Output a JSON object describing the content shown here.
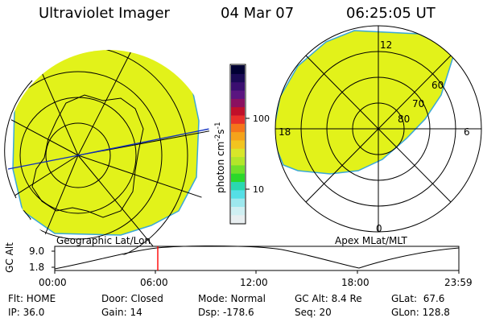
{
  "header": {
    "instrument": "Ultraviolet Imager",
    "date": "04 Mar 07",
    "time": "06:25:05 UT"
  },
  "left_map": {
    "label": "Geographic Lat/Lon"
  },
  "right_map": {
    "label": "Apex MLat/MLT",
    "mlt_labels": [
      "12",
      "18",
      "6",
      "0"
    ],
    "lat_labels": [
      "60",
      "70",
      "80"
    ]
  },
  "colorbar": {
    "unit_main": "photon cm",
    "unit_exp1": "-2",
    "unit_mid": "s",
    "unit_exp2": "-1",
    "tick_labels": [
      "100",
      "10"
    ],
    "colors": [
      "#000033",
      "#1a0a55",
      "#3a0f70",
      "#5a1580",
      "#8a1060",
      "#c0102a",
      "#e8302a",
      "#f5751a",
      "#f5a31a",
      "#f2c41f",
      "#d8e62a",
      "#b2e62a",
      "#6fe02a",
      "#2ad82a",
      "#2ad8b0",
      "#55dfe6",
      "#9de8ee",
      "#cfeff2",
      "#e8eef0"
    ]
  },
  "altitude_plot": {
    "y_axis_label": "GC Alt",
    "y_ticks": [
      "9.0",
      "1.8"
    ],
    "x_ticks": [
      "00:00",
      "06:00",
      "12:00",
      "18:00",
      "23:59"
    ],
    "current_marker_color": "#ff0000"
  },
  "info": {
    "flt": "Flt: HOME",
    "ip": "IP: 36.0",
    "door": "Door: Closed",
    "gain": "Gain: 14",
    "mode": "Mode: Normal",
    "dsp": "Dsp: -178.6",
    "gc_alt": "GC Alt: 8.4 Re",
    "seq": "Seq: 20",
    "glat": "GLat:  67.6",
    "glon": "GLon: 128.8"
  },
  "colors": {
    "aurora_fill": "#e2f21a",
    "edge": "#3aa8d8"
  }
}
